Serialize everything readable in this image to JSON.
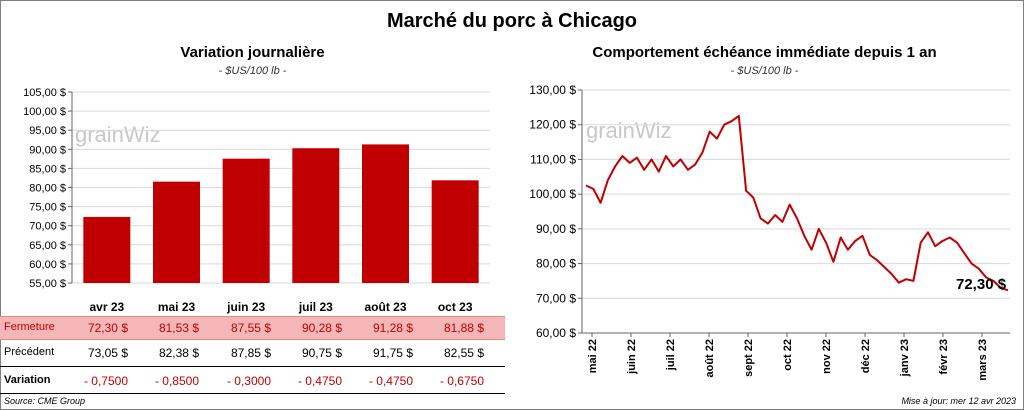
{
  "title": "Marché du porc à Chicago",
  "left": {
    "title": "Variation  journalière",
    "unit": "- $US/100 lb -",
    "watermark": "grainWiz"
  },
  "right": {
    "title": "Comportement  échéance immédiate depuis 1 an",
    "unit": "- $US/100 lb -",
    "watermark": "grainWiz",
    "last_label": "72,30 $"
  },
  "table": {
    "rows": [
      {
        "label": "Fermeture",
        "values": [
          "72,30 $",
          "81,53 $",
          "87,55 $",
          "90,28 $",
          "91,28 $",
          "81,88 $"
        ]
      },
      {
        "label": "Précédent",
        "values": [
          "73,05 $",
          "82,38 $",
          "87,85 $",
          "90,75 $",
          "91,75 $",
          "82,55 $"
        ]
      },
      {
        "label": "Variation",
        "values": [
          "- 0,7500",
          "- 0,8500",
          "- 0,3000",
          "- 0,4750",
          "- 0,4750",
          "- 0,6750"
        ]
      }
    ]
  },
  "footer": {
    "source": "Source: CME Group",
    "updated": "Mise à jour: mer 12 avr 2023"
  },
  "colors": {
    "bar": "#c00000",
    "line": "#c00000",
    "closing_row_bg": "#f4b6b6",
    "negative": "#c00000"
  },
  "chart_data": [
    {
      "type": "bar",
      "categories": [
        "avr 23",
        "mai 23",
        "juin 23",
        "juil 23",
        "août 23",
        "oct 23"
      ],
      "values": [
        72.3,
        81.53,
        87.55,
        90.28,
        91.28,
        81.88
      ],
      "ylim": [
        55,
        105
      ],
      "yticks": [
        "55,00 $",
        "60,00 $",
        "65,00 $",
        "70,00 $",
        "75,00 $",
        "80,00 $",
        "85,00 $",
        "90,00 $",
        "95,00 $",
        "100,00 $",
        "105,00 $"
      ],
      "title": "Variation  journalière",
      "ylabel": "",
      "xlabel": ""
    },
    {
      "type": "line",
      "ylim": [
        60,
        130
      ],
      "yticks": [
        "60,00 $",
        "70,00 $",
        "80,00 $",
        "90,00 $",
        "100,00 $",
        "110,00 $",
        "120,00 $",
        "130,00 $"
      ],
      "xticks": [
        "mai 22",
        "juin 22",
        "juil 22",
        "août 22",
        "sept 22",
        "oct 22",
        "nov 22",
        "déc 22",
        "janv 23",
        "févr 23",
        "mars 23"
      ],
      "x": [
        "avr 22",
        "avr 22",
        "mai 22",
        "mai 22",
        "mai 22",
        "mai 22",
        "mai 22",
        "juin 22",
        "juin 22",
        "juin 22",
        "juin 22",
        "juin 22",
        "juil 22",
        "juil 22",
        "juil 22",
        "juil 22",
        "juil 22",
        "août 22",
        "août 22",
        "août 22",
        "août 22",
        "août 22",
        "août 22",
        "sept 22",
        "sept 22",
        "sept 22",
        "sept 22",
        "sept 22",
        "oct 22",
        "oct 22",
        "oct 22",
        "oct 22",
        "oct 22",
        "nov 22",
        "nov 22",
        "nov 22",
        "nov 22",
        "nov 22",
        "déc 22",
        "déc 22",
        "déc 22",
        "déc 22",
        "déc 22",
        "janv 23",
        "janv 23",
        "janv 23",
        "janv 23",
        "janv 23",
        "févr 23",
        "févr 23",
        "févr 23",
        "févr 23",
        "mars 23",
        "mars 23",
        "mars 23",
        "mars 23",
        "mars 23",
        "avr 23",
        "avr 23"
      ],
      "series": [
        {
          "values": [
            102.5,
            101.5,
            97.5,
            104,
            108,
            111,
            109,
            110.5,
            107,
            110,
            106.5,
            111,
            108,
            110,
            107,
            108.5,
            112,
            118,
            116,
            120,
            121,
            122.5,
            101,
            99,
            93,
            91.5,
            94,
            92,
            97,
            93,
            88,
            84,
            90,
            86,
            80.5,
            87.5,
            84,
            86.5,
            88,
            82.5,
            81,
            79,
            77,
            74.5,
            75.5,
            75,
            86,
            89,
            85,
            86.5,
            87.5,
            86,
            83,
            80,
            78.5,
            76,
            75,
            73,
            72.3
          ]
        }
      ],
      "title": "Comportement  échéance immédiate depuis 1 an",
      "ylabel": "",
      "xlabel": ""
    }
  ]
}
